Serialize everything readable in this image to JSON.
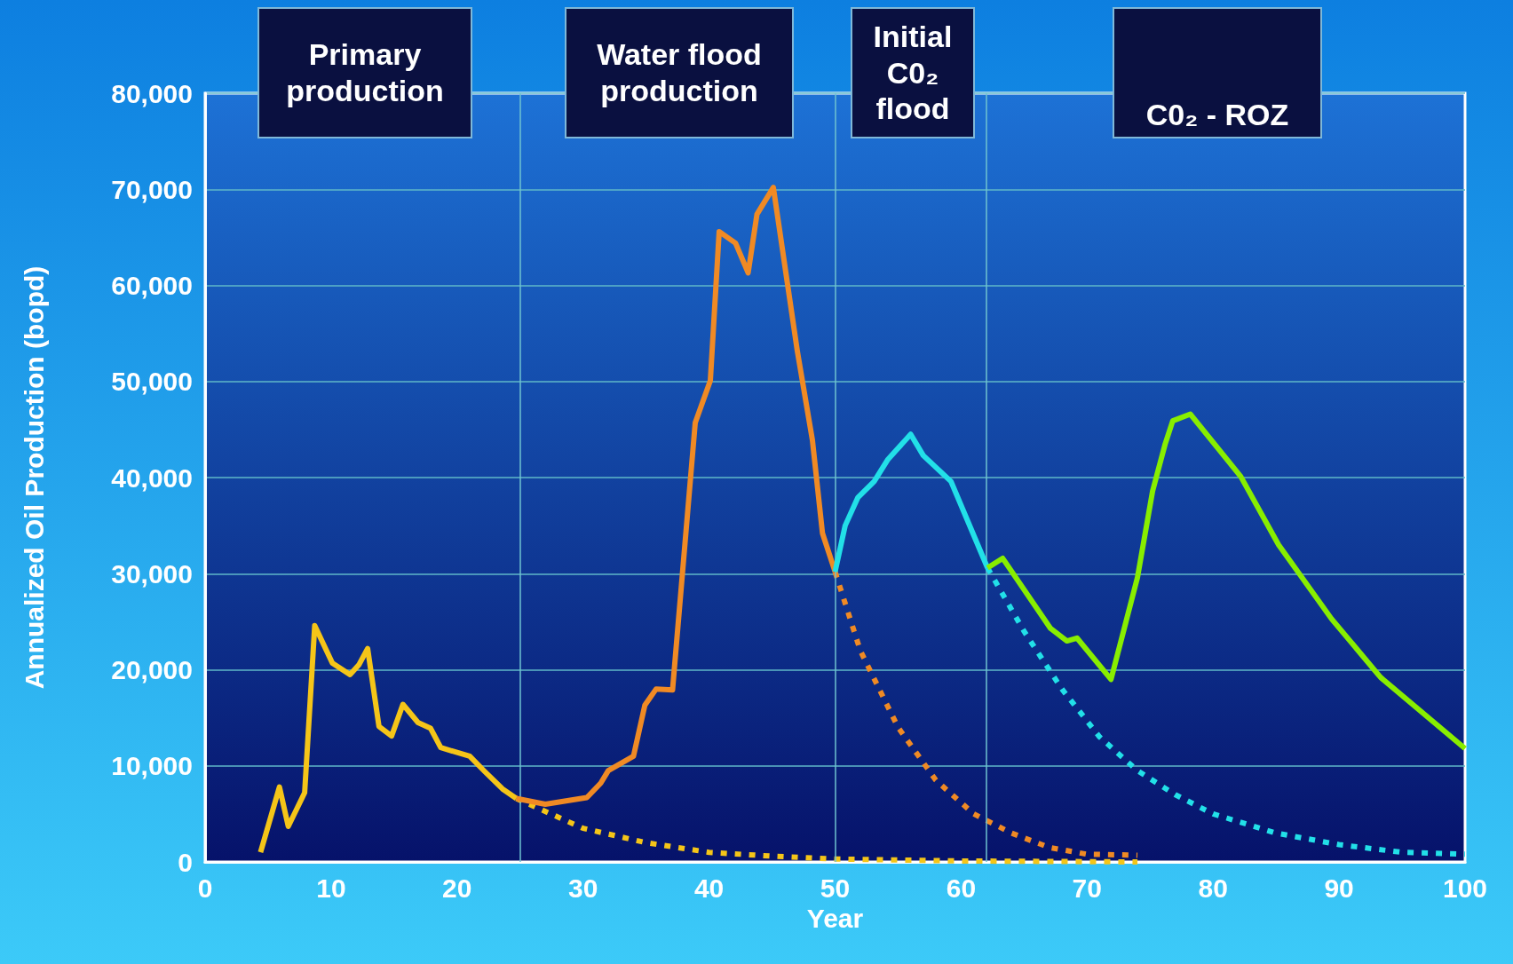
{
  "chart_data": {
    "type": "line",
    "xlabel": "Year",
    "ylabel": "Annualized Oil Production (bopd)",
    "annotations": [
      "Primary production",
      "Water flood production",
      "Initial C0₂ flood",
      "C0₂ - ROZ"
    ],
    "xlim": [
      0,
      100
    ],
    "xticks": [
      0,
      10,
      20,
      30,
      40,
      50,
      60,
      70,
      80,
      90,
      100
    ],
    "ylim": [
      0,
      80000
    ],
    "yticks": [
      {
        "value": 0,
        "label": "0"
      },
      {
        "value": 10000,
        "label": "10,000"
      },
      {
        "value": 20000,
        "label": "20,000"
      },
      {
        "value": 30000,
        "label": "30,000"
      },
      {
        "value": 40000,
        "label": "40,000"
      },
      {
        "value": 50000,
        "label": "50,000"
      },
      {
        "value": 60000,
        "label": "60,000"
      },
      {
        "value": 70000,
        "label": "70,000"
      },
      {
        "value": 80000,
        "label": "80,000"
      }
    ],
    "grid": "y",
    "marker": "none",
    "ref_lines": [
      {
        "axis": "x",
        "value": 25,
        "color": "#6fc3d0"
      },
      {
        "axis": "x",
        "value": 50,
        "color": "#6fc3d0"
      },
      {
        "axis": "x",
        "value": 62,
        "color": "#6fc3d0"
      }
    ],
    "series": [
      {
        "color": "#f5c518",
        "line_style": "dotted",
        "x": [
          24.7,
          30,
          35,
          40,
          45,
          50,
          60,
          74
        ],
        "values": [
          6600,
          3500,
          2000,
          1000,
          600,
          300,
          100,
          0
        ]
      },
      {
        "color": "#f08a24",
        "line_style": "dotted",
        "x": [
          50,
          52,
          55,
          58,
          61,
          64,
          67,
          70,
          74
        ],
        "values": [
          30200,
          22000,
          14000,
          8500,
          5000,
          3000,
          1500,
          800,
          700
        ]
      },
      {
        "color": "#22e0e8",
        "line_style": "dotted",
        "x": [
          62.1,
          65,
          68,
          71,
          74,
          77,
          80,
          85,
          90,
          95,
          100
        ],
        "values": [
          30600,
          24000,
          18000,
          13000,
          9500,
          7000,
          5000,
          3000,
          1800,
          1000,
          800
        ]
      },
      {
        "color": "#f5c518",
        "line_style": "solid",
        "x": [
          4.4,
          5.9,
          6.6,
          7.9,
          8.7,
          10.1,
          11.5,
          12.2,
          12.9,
          13.8,
          14.8,
          15.7,
          16.9,
          17.9,
          18.7,
          21,
          22.2,
          23.6,
          24.7
        ],
        "values": [
          1000,
          7800,
          3700,
          7200,
          24600,
          20700,
          19500,
          20500,
          22200,
          14100,
          13100,
          16400,
          14500,
          13900,
          11900,
          11000,
          9400,
          7600,
          6600
        ]
      },
      {
        "color": "#f08a24",
        "line_style": "solid",
        "x": [
          24.7,
          27,
          30.3,
          31.4,
          32,
          34,
          34.9,
          35.8,
          37.1,
          38.9,
          40.1,
          40.8,
          42.1,
          43.1,
          43.8,
          45.1,
          47,
          48.2,
          49,
          50
        ],
        "values": [
          6600,
          6000,
          6700,
          8200,
          9500,
          11000,
          16300,
          18000,
          17900,
          45700,
          50100,
          65600,
          64400,
          61300,
          67400,
          70200,
          53200,
          43900,
          34200,
          30200
        ]
      },
      {
        "color": "#22e0e8",
        "line_style": "solid",
        "x": [
          50,
          50.8,
          51.8,
          53.1,
          54.2,
          56,
          57,
          59.2,
          62.1
        ],
        "values": [
          30200,
          35000,
          37900,
          39600,
          41900,
          44500,
          42300,
          39600,
          30600
        ]
      },
      {
        "color": "#88ee00",
        "line_style": "solid",
        "x": [
          62.1,
          63.3,
          67.1,
          68.4,
          69.2,
          71.9,
          74,
          75.2,
          76.2,
          76.8,
          78.2,
          82.2,
          85.2,
          89.4,
          93.3,
          100
        ],
        "values": [
          30600,
          31600,
          24300,
          23000,
          23300,
          19000,
          29600,
          38600,
          43500,
          45900,
          46600,
          40100,
          33000,
          25300,
          19200,
          11800
        ]
      }
    ]
  }
}
